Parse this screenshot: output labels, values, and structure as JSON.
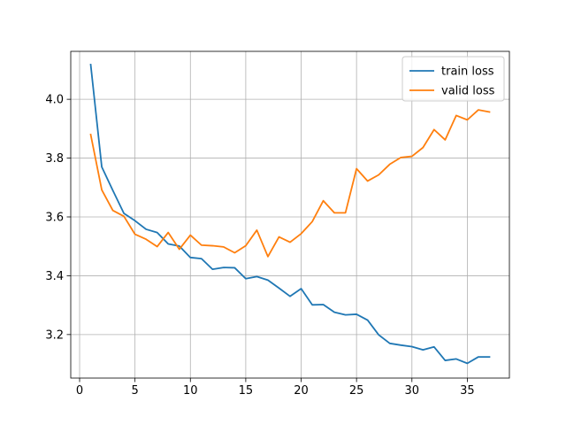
{
  "chart_data": {
    "type": "line",
    "title": "",
    "xlabel": "",
    "ylabel": "",
    "xlim": [
      -0.8,
      38.8
    ],
    "ylim": [
      3.052,
      4.163
    ],
    "xticks": [
      0,
      5,
      10,
      15,
      20,
      25,
      30,
      35
    ],
    "yticks": [
      3.2,
      3.4,
      3.6,
      3.8,
      4.0
    ],
    "xtick_labels": [
      "0",
      "5",
      "10",
      "15",
      "20",
      "25",
      "30",
      "35"
    ],
    "ytick_labels": [
      "3.2",
      "3.4",
      "3.6",
      "3.8",
      "4.0"
    ],
    "grid": true,
    "legend": {
      "placement": "top-right"
    },
    "x": [
      1,
      2,
      3,
      4,
      5,
      6,
      7,
      8,
      9,
      10,
      11,
      12,
      13,
      14,
      15,
      16,
      17,
      18,
      19,
      20,
      21,
      22,
      23,
      24,
      25,
      26,
      27,
      28,
      29,
      30,
      31,
      32,
      33,
      34,
      35,
      36,
      37
    ],
    "series": [
      {
        "name": "train loss",
        "color": "#1f77b4",
        "values": [
          4.118,
          3.77,
          3.69,
          3.612,
          3.587,
          3.558,
          3.547,
          3.508,
          3.501,
          3.462,
          3.458,
          3.422,
          3.428,
          3.427,
          3.39,
          3.397,
          3.385,
          3.358,
          3.33,
          3.356,
          3.301,
          3.302,
          3.276,
          3.267,
          3.269,
          3.249,
          3.199,
          3.17,
          3.164,
          3.159,
          3.148,
          3.158,
          3.112,
          3.117,
          3.102,
          3.124,
          3.124
        ]
      },
      {
        "name": "valid loss",
        "color": "#ff7f0e",
        "values": [
          3.88,
          3.692,
          3.622,
          3.602,
          3.541,
          3.524,
          3.499,
          3.547,
          3.49,
          3.538,
          3.504,
          3.502,
          3.498,
          3.478,
          3.502,
          3.555,
          3.465,
          3.532,
          3.514,
          3.543,
          3.584,
          3.655,
          3.614,
          3.614,
          3.764,
          3.722,
          3.743,
          3.779,
          3.802,
          3.806,
          3.836,
          3.897,
          3.862,
          3.945,
          3.93,
          3.964,
          3.957
        ]
      }
    ]
  }
}
